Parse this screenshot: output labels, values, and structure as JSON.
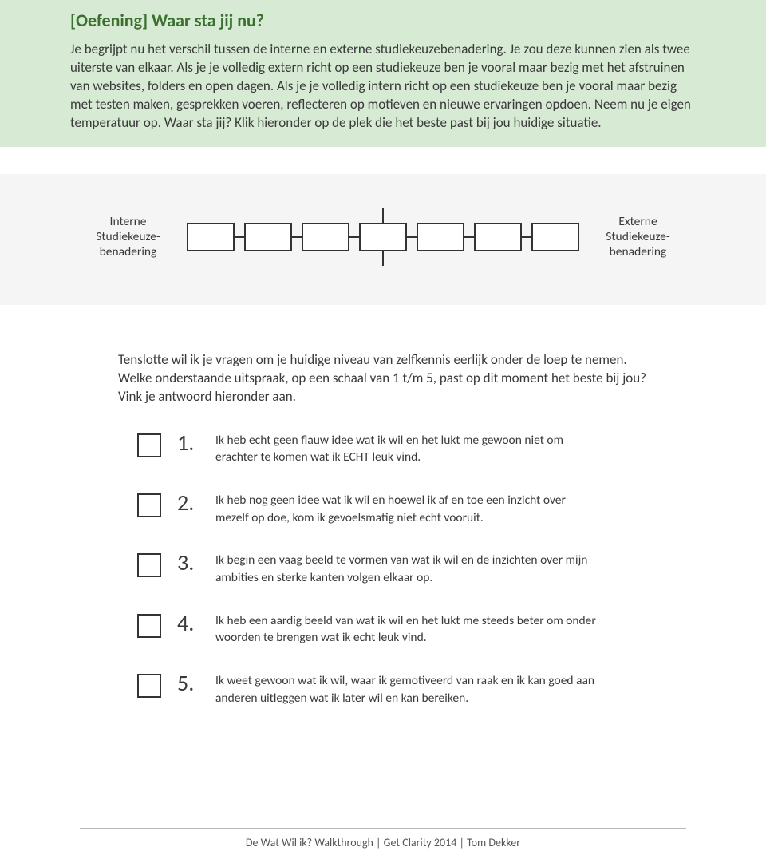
{
  "colors": {
    "header_bg": "#d6ead4",
    "title_color": "#3b7030",
    "scale_bg": "#f5f5f5",
    "text": "#3a3a3a",
    "border": "#333333"
  },
  "header": {
    "title": "[Oefening] Waar sta jij nu?",
    "intro": "Je begrijpt nu  het verschil tussen de interne en externe studiekeuzebenadering. Je zou deze kunnen zien als twee uiterste van elkaar. Als je je volledig extern richt op een studiekeuze ben je vooral maar bezig met het afstruinen van websites, folders en open dagen. Als je je volledig intern richt op een studiekeuze ben je vooral maar bezig met testen maken, gesprekken voeren, reflecteren op motieven en nieuwe ervaringen opdoen. Neem nu je eigen temperatuur op. Waar sta jij? Klik hieronder op de plek die het beste past bij jou huidige situatie."
  },
  "scale": {
    "left_label_l1": "Interne",
    "left_label_l2": "Studiekeuze-",
    "left_label_l3": "benadering",
    "right_label_l1": "Externe",
    "right_label_l2": "Studiekeuze-",
    "right_label_l3": "benadering",
    "box_count": 7
  },
  "body": {
    "paragraph": "Tenslotte wil ik je vragen om je huidige niveau van zelfkennis eerlijk onder de loep te nemen. Welke onderstaande uitspraak, op een schaal van 1 t/m 5, past op dit moment het beste bij jou? Vink je antwoord hieronder aan."
  },
  "options": [
    {
      "num": "1.",
      "text": "Ik heb echt geen flauw idee wat ik wil en het lukt me gewoon niet om erachter te komen wat ik ECHT leuk vind."
    },
    {
      "num": "2.",
      "text": "Ik heb nog geen idee wat ik wil en hoewel ik af en toe een inzicht over mezelf op doe, kom ik gevoelsmatig niet echt vooruit."
    },
    {
      "num": "3.",
      "text": "Ik begin een vaag beeld te vormen van wat ik wil en de inzichten over mijn ambities en sterke kanten volgen elkaar op."
    },
    {
      "num": "4.",
      "text": "Ik heb een aardig beeld van wat ik wil en het lukt me steeds beter om onder woorden te brengen wat ik echt leuk vind."
    },
    {
      "num": "5.",
      "text": "Ik weet gewoon wat ik wil, waar ik gemotiveerd van raak en ik kan goed aan anderen uitleggen wat ik later wil en kan bereiken."
    }
  ],
  "footer": "De Wat Wil ik? Walkthrough | Get Clarity 2014 | Tom Dekker"
}
